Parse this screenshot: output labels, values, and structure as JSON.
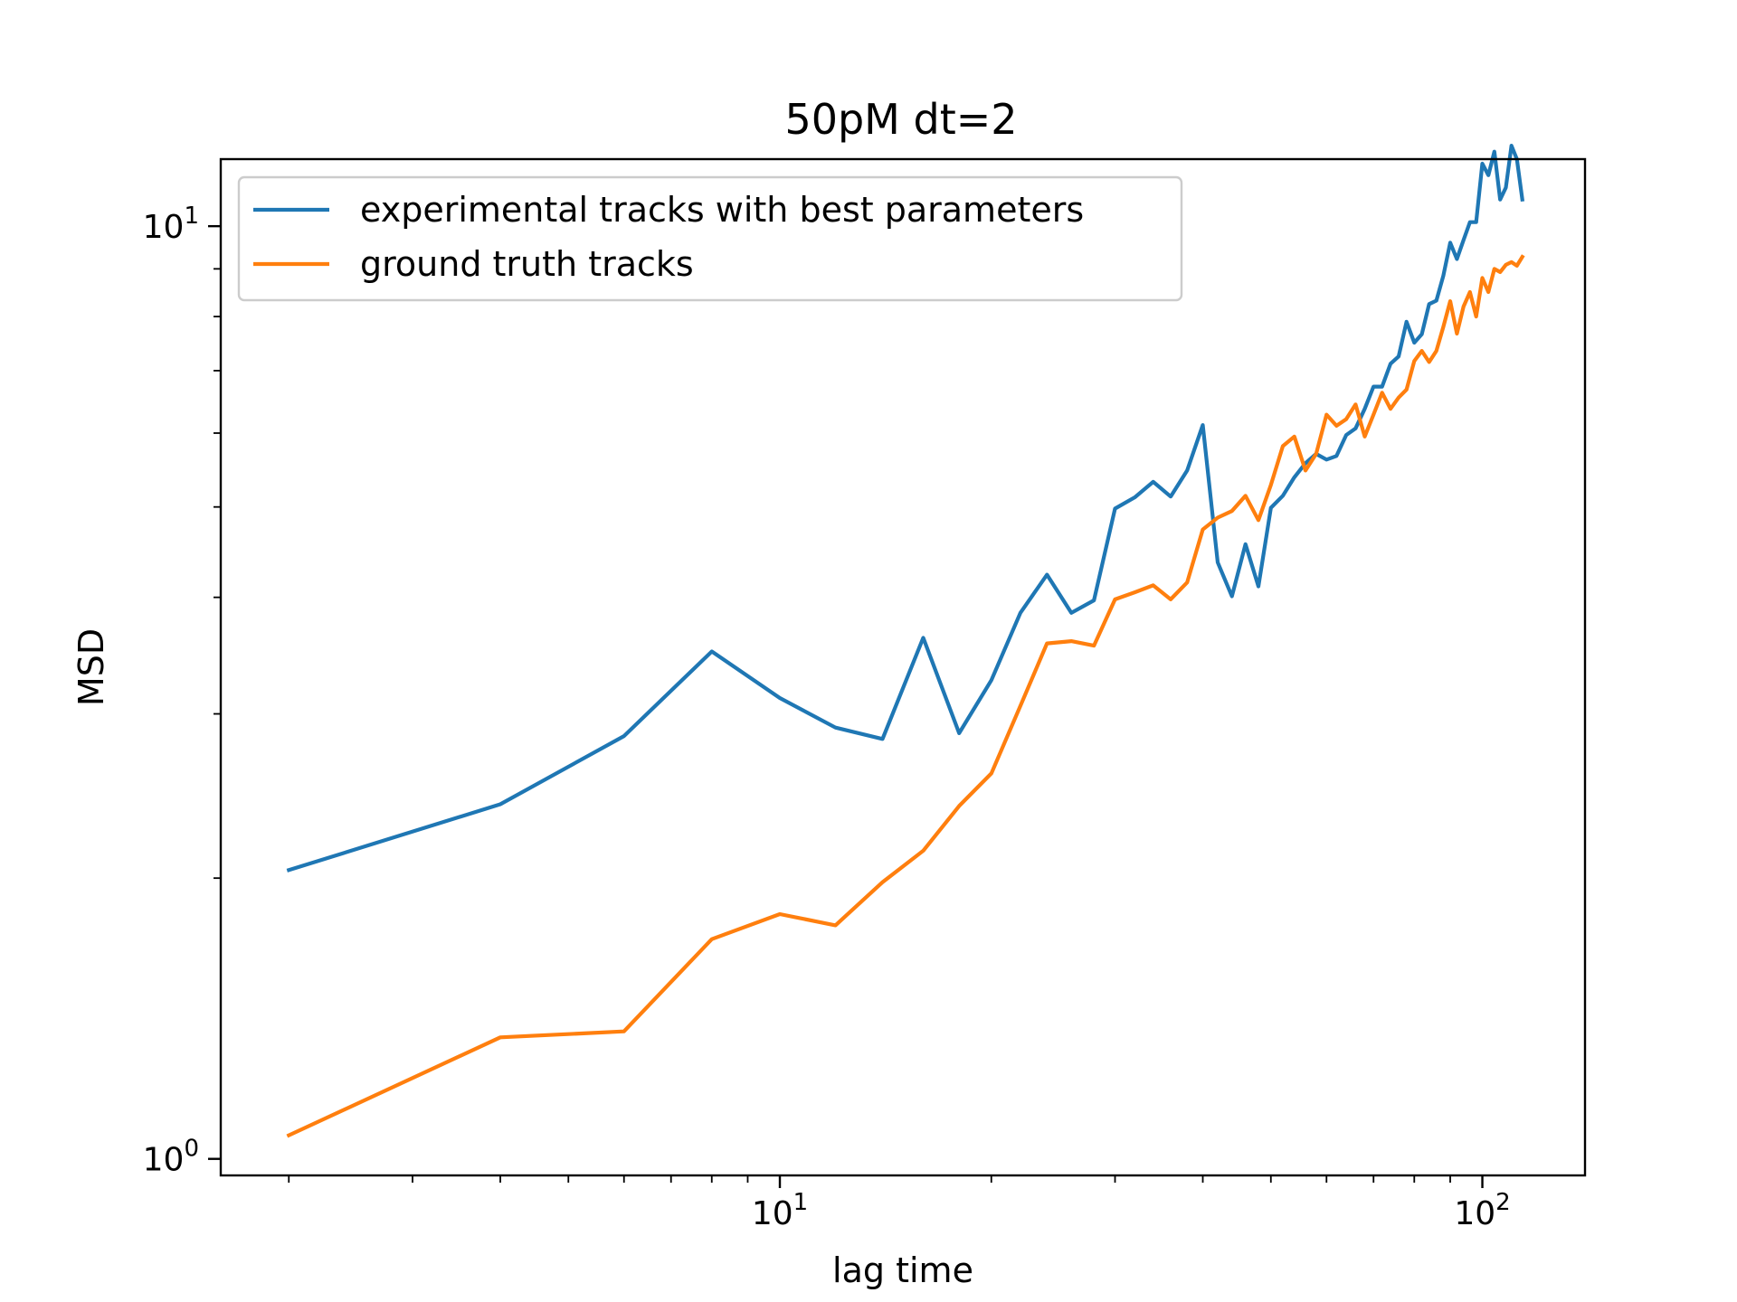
{
  "chart_data": {
    "type": "line",
    "title": "50pM dt=2",
    "xlabel": "lag time",
    "ylabel": "MSD",
    "xscale": "log",
    "yscale": "log",
    "xlim": [
      1.6,
      140
    ],
    "ylim": [
      0.96,
      11.8
    ],
    "grid": false,
    "legend_position": "top-left",
    "x_ticks": [
      {
        "base": "10",
        "exp": "1",
        "value": 10
      },
      {
        "base": "10",
        "exp": "2",
        "value": 100
      }
    ],
    "y_ticks": [
      {
        "base": "10",
        "exp": "0",
        "value": 1
      },
      {
        "base": "10",
        "exp": "1",
        "value": 10
      }
    ],
    "x": [
      2,
      4,
      6,
      8,
      10,
      12,
      14,
      16,
      18,
      20,
      22,
      24,
      26,
      28,
      30,
      32,
      34,
      36,
      38,
      40,
      42,
      44,
      46,
      48,
      50,
      52,
      54,
      56,
      58,
      60,
      62,
      64,
      66,
      68,
      70,
      72,
      74,
      76,
      78,
      80,
      82,
      84,
      86,
      88,
      90,
      92,
      94,
      96,
      98,
      100,
      102,
      104,
      106,
      108,
      110,
      112,
      114
    ],
    "series": [
      {
        "name": "experimental tracks with best parameters",
        "color": "#1f77b4",
        "values": [
          2.04,
          2.4,
          2.84,
          3.5,
          3.12,
          2.9,
          2.82,
          3.62,
          2.86,
          3.26,
          3.85,
          4.23,
          3.85,
          3.97,
          4.98,
          5.12,
          5.32,
          5.13,
          5.47,
          6.12,
          4.36,
          4.01,
          4.56,
          4.11,
          4.99,
          5.14,
          5.38,
          5.57,
          5.7,
          5.62,
          5.67,
          5.97,
          6.07,
          6.37,
          6.73,
          6.73,
          7.12,
          7.25,
          7.9,
          7.5,
          7.66,
          8.25,
          8.32,
          8.85,
          9.6,
          9.22,
          9.66,
          10.1,
          10.1,
          11.67,
          11.34,
          12.02,
          10.68,
          11.0,
          12.2,
          11.8,
          10.68
        ]
      },
      {
        "name": "ground truth tracks",
        "color": "#ff7f0e",
        "values": [
          1.06,
          1.35,
          1.37,
          1.72,
          1.83,
          1.78,
          1.98,
          2.14,
          2.39,
          2.59,
          3.06,
          3.57,
          3.59,
          3.55,
          3.98,
          4.05,
          4.12,
          3.98,
          4.15,
          4.73,
          4.87,
          4.95,
          5.14,
          4.84,
          5.28,
          5.81,
          5.95,
          5.47,
          5.7,
          6.28,
          6.11,
          6.21,
          6.44,
          5.95,
          6.28,
          6.63,
          6.37,
          6.55,
          6.68,
          7.17,
          7.35,
          7.15,
          7.35,
          7.8,
          8.31,
          7.67,
          8.2,
          8.5,
          8.0,
          8.8,
          8.5,
          9.0,
          8.93,
          9.09,
          9.15,
          9.07,
          9.27
        ]
      }
    ]
  }
}
